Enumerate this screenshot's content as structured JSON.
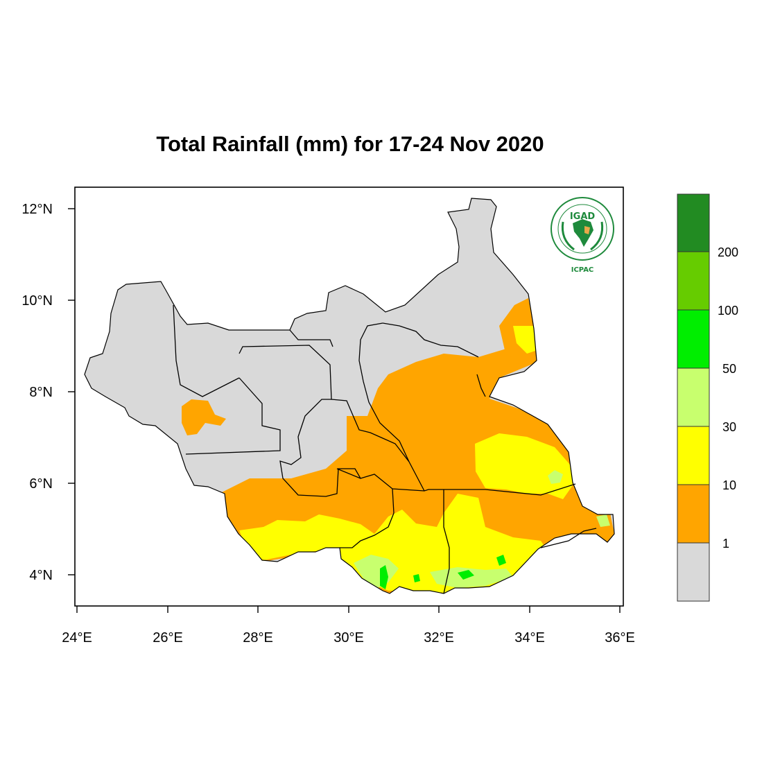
{
  "title": "Total Rainfall (mm) for 17-24 Nov 2020",
  "logo": {
    "acronym": "IGAD",
    "sub": "ICPAC",
    "ring_text": "INTERGOVERNMENTAL AUTHORITY ON DEVELOPMENT"
  },
  "axes": {
    "lon_ticks": [
      "24°E",
      "26°E",
      "28°E",
      "30°E",
      "32°E",
      "34°E",
      "36°E"
    ],
    "lat_ticks": [
      "12°N",
      "10°N",
      "8°N",
      "6°N",
      "4°N"
    ]
  },
  "colorbar": {
    "labels": [
      "1",
      "10",
      "30",
      "50",
      "100",
      "200"
    ],
    "colors": [
      "#d9d9d9",
      "#ffa500",
      "#ffff00",
      "#c8ff6e",
      "#00ee00",
      "#66cc00",
      "#228b22"
    ]
  },
  "categories": {
    "no_rain": "#d9d9d9",
    "1_10": "#ffa500",
    "10_30": "#ffff00",
    "30_50": "#c8ff6e",
    "50_100": "#00ee00"
  }
}
